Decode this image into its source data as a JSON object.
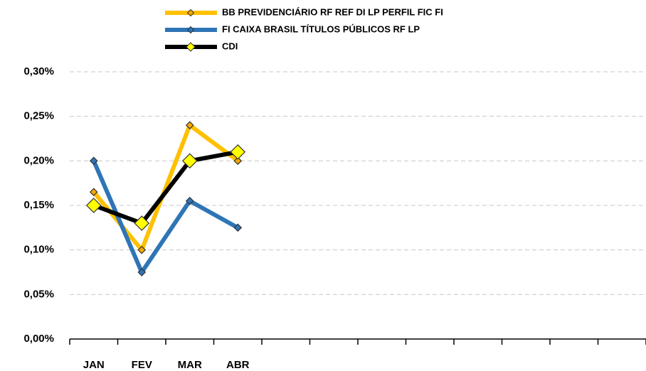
{
  "chart_data": {
    "type": "line",
    "categories": [
      "JAN",
      "FEV",
      "MAR",
      "ABR",
      null,
      null,
      null,
      null,
      null,
      null,
      null,
      null
    ],
    "series": [
      {
        "name": "BB PREVIDENCIÁRIO RF REF DI LP PERFIL FIC FI",
        "color": "#ffc000",
        "marker_color": "#f5a800",
        "values": [
          0.165,
          0.1,
          0.24,
          0.2,
          null,
          null,
          null,
          null,
          null,
          null,
          null,
          null
        ]
      },
      {
        "name": "FI CAIXA BRASIL TÍTULOS PÚBLICOS RF LP",
        "color": "#2e75b6",
        "marker_color": "#2e75b6",
        "values": [
          0.2,
          0.075,
          0.155,
          0.125,
          null,
          null,
          null,
          null,
          null,
          null,
          null,
          null
        ]
      },
      {
        "name": "CDI",
        "color": "#000000",
        "marker_color": "#ffff00",
        "values": [
          0.15,
          0.13,
          0.2,
          0.21,
          null,
          null,
          null,
          null,
          null,
          null,
          null,
          null
        ]
      }
    ],
    "ylim": [
      0,
      0.3
    ],
    "yticks": [
      {
        "value": 0,
        "label": "0,00%"
      },
      {
        "value": 0.05,
        "label": "0,05%"
      },
      {
        "value": 0.1,
        "label": "0,10%"
      },
      {
        "value": 0.15,
        "label": "0,15%"
      },
      {
        "value": 0.2,
        "label": "0,20%"
      },
      {
        "value": 0.25,
        "label": "0,25%"
      },
      {
        "value": 0.3,
        "label": "0,30%"
      }
    ],
    "grid": true,
    "legend": "top"
  }
}
